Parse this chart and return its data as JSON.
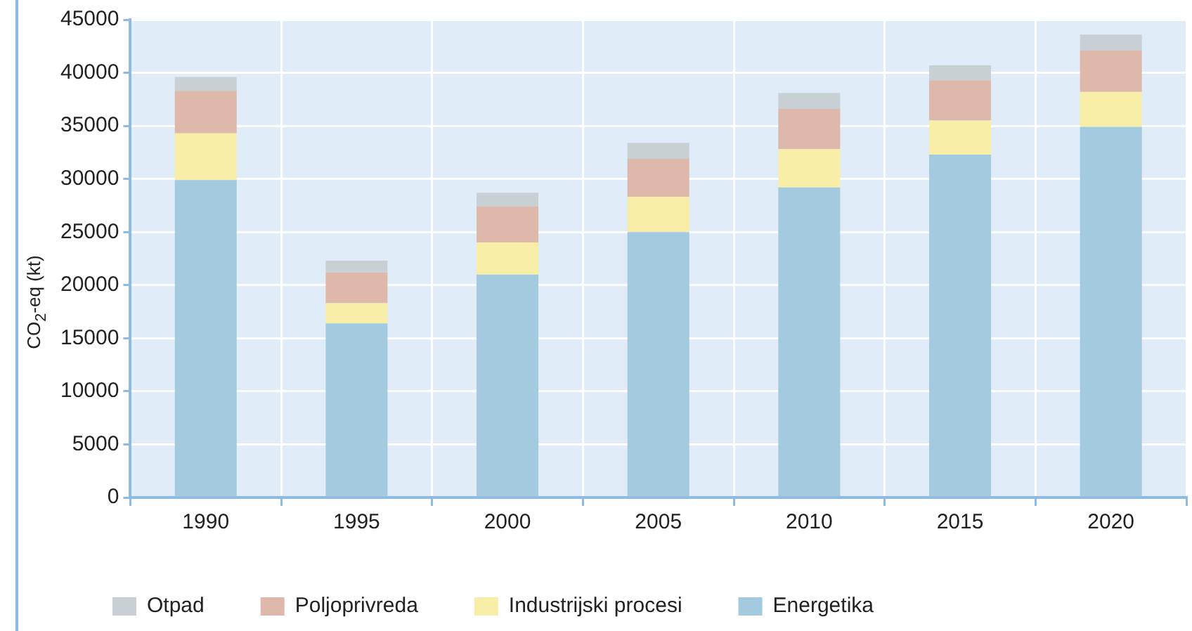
{
  "chart_data": {
    "type": "bar",
    "stacked": true,
    "ylabel": "CO$_{2}$-eq (kt)",
    "categories": [
      "1990",
      "1995",
      "2000",
      "2005",
      "2010",
      "2015",
      "2020"
    ],
    "series": [
      {
        "name": "Energetika",
        "color": "#a3cadf",
        "values": [
          29900,
          16400,
          21000,
          25000,
          29200,
          32300,
          34900
        ]
      },
      {
        "name": "Industrijski procesi",
        "color": "#f8eea8",
        "values": [
          4400,
          1900,
          3000,
          3300,
          3600,
          3200,
          3300
        ]
      },
      {
        "name": "Poljoprivreda",
        "color": "#ddb8ab",
        "values": [
          4000,
          2900,
          3400,
          3600,
          3800,
          3800,
          3900
        ]
      },
      {
        "name": "Otpad",
        "color": "#c8d0d4",
        "values": [
          1300,
          1100,
          1300,
          1500,
          1500,
          1400,
          1500
        ]
      }
    ],
    "ylim": [
      0,
      45000
    ],
    "yticks": [
      0,
      5000,
      10000,
      15000,
      20000,
      25000,
      30000,
      35000,
      40000,
      45000
    ],
    "grid": true,
    "legend": "bottom"
  }
}
